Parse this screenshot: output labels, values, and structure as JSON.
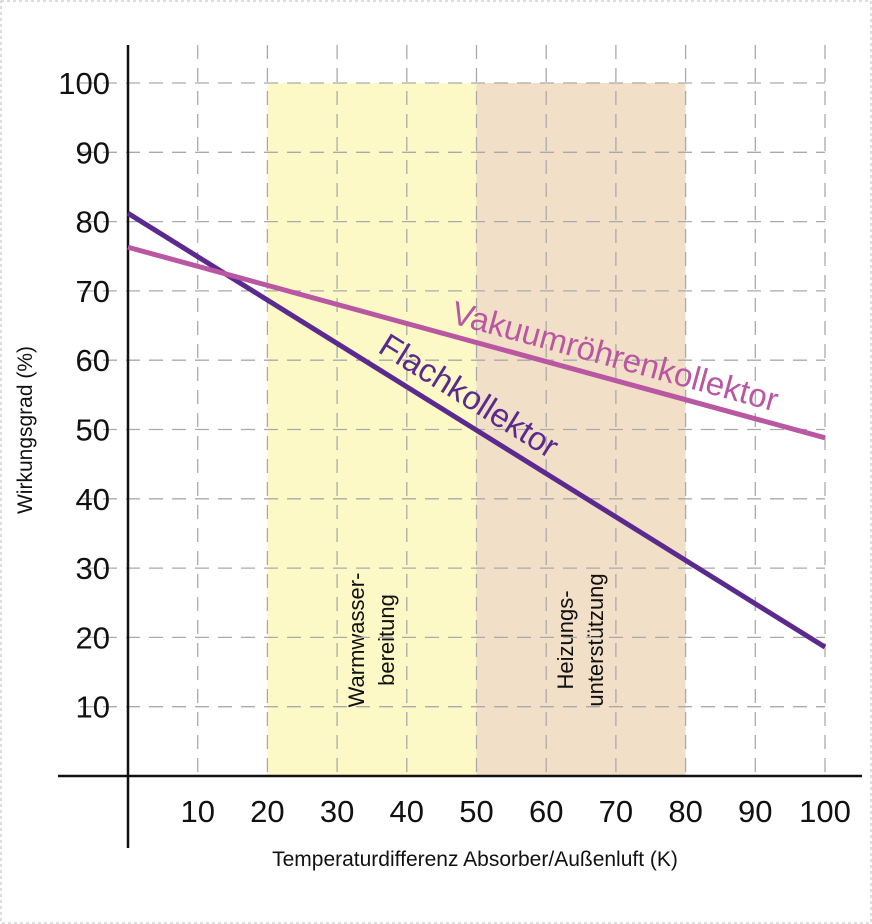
{
  "chart_data": {
    "type": "line",
    "xlabel": "Temperaturdifferenz Absorber/Außenluft (K)",
    "ylabel": "Wirkungsgrad (%)",
    "xlim": [
      0,
      100
    ],
    "ylim": [
      0,
      100
    ],
    "x_ticks": [
      "10",
      "20",
      "30",
      "40",
      "50",
      "60",
      "70",
      "80",
      "90",
      "100"
    ],
    "y_ticks": [
      "10",
      "20",
      "30",
      "40",
      "50",
      "60",
      "70",
      "80",
      "90",
      "100"
    ],
    "grid": true,
    "series": [
      {
        "name": "Flachkollektor",
        "color": "#5b2a8e",
        "x": [
          0,
          100
        ],
        "y": [
          81.2,
          18.6
        ]
      },
      {
        "name": "Vakuumröhrenkollektor",
        "color": "#b957a2",
        "x": [
          0,
          100
        ],
        "y": [
          76.3,
          48.8
        ]
      }
    ],
    "bands": [
      {
        "label_lines": [
          "Warmwasser-",
          "bereitung"
        ],
        "x": [
          20,
          50
        ],
        "y": [
          0,
          100
        ],
        "color": "#fcf9c6"
      },
      {
        "label_lines": [
          "Heizungs-",
          "unterstützung"
        ],
        "x": [
          50,
          80
        ],
        "y": [
          0,
          100
        ],
        "color": "#f2dfc7"
      }
    ]
  }
}
